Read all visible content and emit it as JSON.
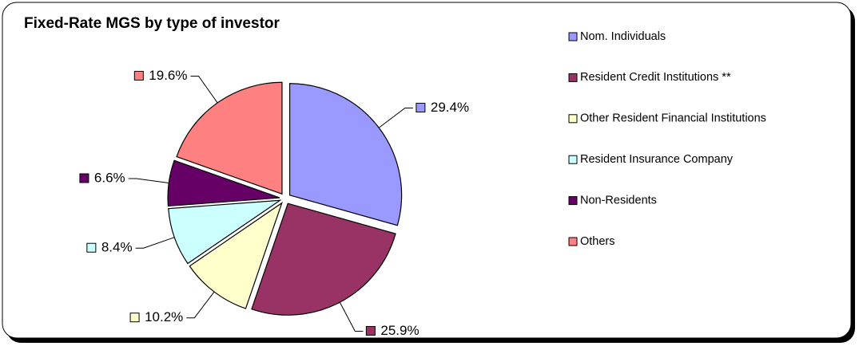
{
  "chart_data": {
    "type": "pie",
    "title": "Fixed-Rate MGS by type of investor",
    "categories": [
      "Nom. Individuals",
      "Resident Credit Institutions **",
      "Other Resident Financial Institutions",
      "Resident Insurance Company",
      "Non-Residents",
      "Others"
    ],
    "values": [
      29.4,
      25.9,
      10.2,
      8.4,
      6.6,
      19.6
    ],
    "value_labels": [
      "29.4%",
      "25.9%",
      "10.2%",
      "8.4%",
      "6.6%",
      "19.6%"
    ],
    "colors": [
      "#9999ff",
      "#993366",
      "#ffffcc",
      "#ccffff",
      "#660066",
      "#ff8080"
    ],
    "legend": "right"
  }
}
